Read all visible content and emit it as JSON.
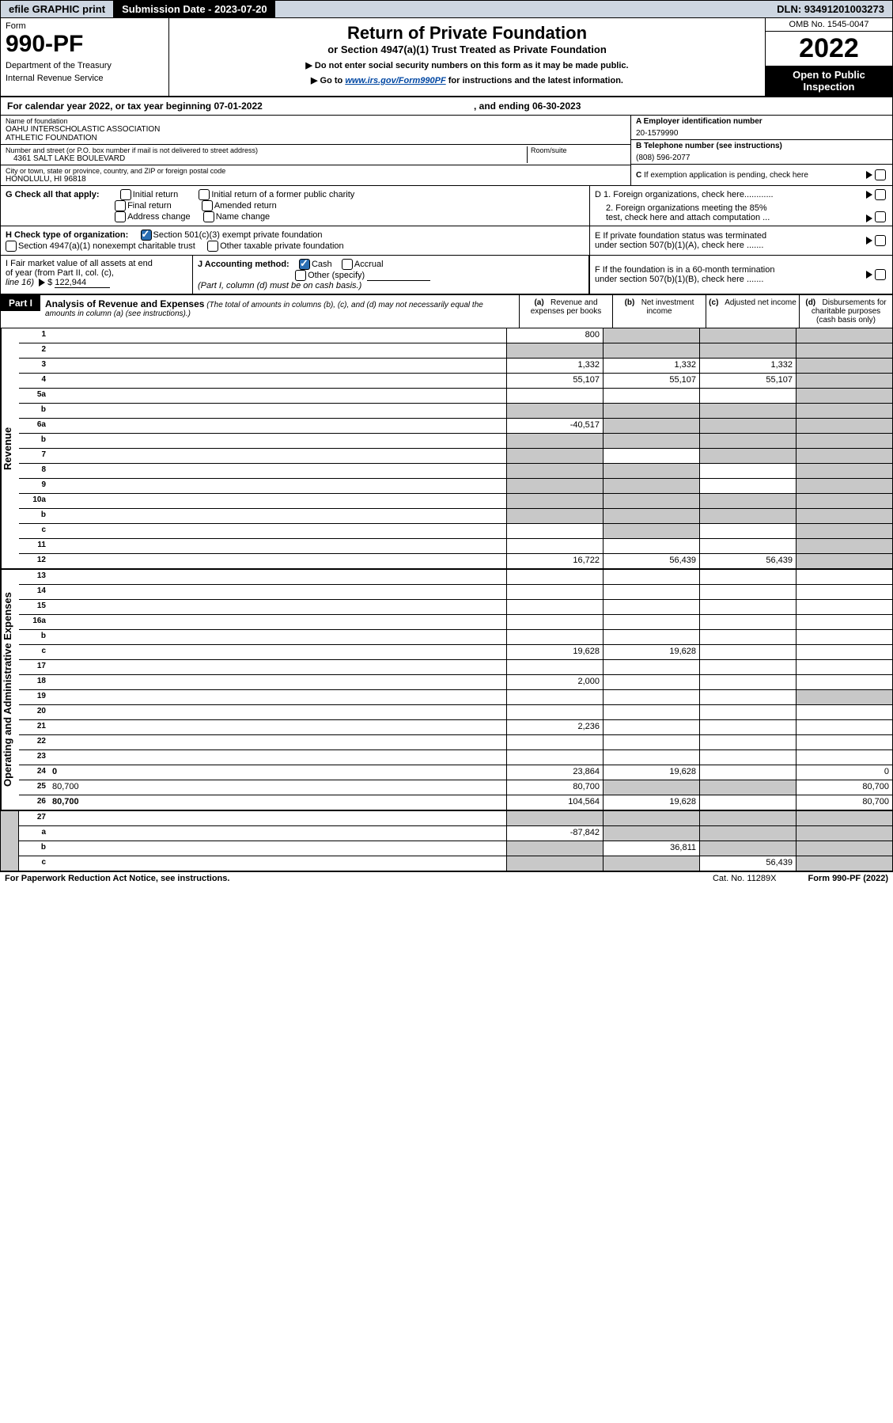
{
  "topbar": {
    "efile": "efile GRAPHIC print",
    "submission": "Submission Date - 2023-07-20",
    "dln": "DLN: 93491201003273"
  },
  "header": {
    "form_label": "Form",
    "form_num": "990-PF",
    "dept1": "Department of the Treasury",
    "dept2": "Internal Revenue Service",
    "title_main": "Return of Private Foundation",
    "title_sub": "or Section 4947(a)(1) Trust Treated as Private Foundation",
    "inst1": "▶ Do not enter social security numbers on this form as it may be made public.",
    "inst2_pre": "▶ Go to ",
    "inst2_link": "www.irs.gov/Form990PF",
    "inst2_post": " for instructions and the latest information.",
    "omb": "OMB No. 1545-0047",
    "year": "2022",
    "open1": "Open to Public",
    "open2": "Inspection"
  },
  "calendar": {
    "t1": "For calendar year 2022, or tax year beginning 07-01-2022",
    "t2": ", and ending 06-30-2023"
  },
  "ident": {
    "name_label": "Name of foundation",
    "name1": "OAHU INTERSCHOLASTIC ASSOCIATION",
    "name2": "ATHLETIC FOUNDATION",
    "addr_label": "Number and street (or P.O. box number if mail is not delivered to street address)",
    "addr": "4361 SALT LAKE BOULEVARD",
    "room_label": "Room/suite",
    "city_label": "City or town, state or province, country, and ZIP or foreign postal code",
    "city": "HONOLULU, HI  96818",
    "A_label": "A Employer identification number",
    "A_val": "20-1579990",
    "B_label": "B Telephone number (see instructions)",
    "B_val": "(808) 596-2077",
    "C_label": "C If exemption application is pending, check here"
  },
  "G": {
    "label": "G Check all that apply:",
    "o1": "Initial return",
    "o2": "Initial return of a former public charity",
    "o3": "Final return",
    "o4": "Amended return",
    "o5": "Address change",
    "o6": "Name change"
  },
  "D": {
    "d1": "D 1. Foreign organizations, check here............",
    "d2a": "2. Foreign organizations meeting the 85%",
    "d2b": "test, check here and attach computation ..."
  },
  "H": {
    "label": "H Check type of organization:",
    "o1": "Section 501(c)(3) exempt private foundation",
    "o2": "Section 4947(a)(1) nonexempt charitable trust",
    "o3": "Other taxable private foundation"
  },
  "E": {
    "l1": "E  If private foundation status was terminated",
    "l2": "under section 507(b)(1)(A), check here ......."
  },
  "I": {
    "l1": "I Fair market value of all assets at end",
    "l2": "of year (from Part II, col. (c),",
    "l3_pre": "line 16) ",
    "val": "122,944"
  },
  "J": {
    "label": "J Accounting method:",
    "o1": "Cash",
    "o2": "Accrual",
    "o3": "Other (specify)",
    "note": "(Part I, column (d) must be on cash basis.)"
  },
  "F": {
    "l1": "F  If the foundation is in a 60-month termination",
    "l2": "under section 507(b)(1)(B), check here ......."
  },
  "part1": {
    "label": "Part I",
    "title": "Analysis of Revenue and Expenses",
    "note": "(The total of amounts in columns (b), (c), and (d) may not necessarily equal the amounts in column (a) (see instructions).)",
    "col_a": "(a)   Revenue and expenses per books",
    "col_b": "(b)   Net investment income",
    "col_c": "(c)   Adjusted net income",
    "col_d": "(d)   Disbursements for charitable purposes (cash basis only)"
  },
  "vrev": "Revenue",
  "vexp": "Operating and Administrative Expenses",
  "rows_rev": [
    {
      "n": "1",
      "d": "",
      "a": "800",
      "b": "",
      "c": "",
      "gb": true,
      "gc": true,
      "gd": true
    },
    {
      "n": "2",
      "d": "",
      "a": "",
      "b": "",
      "c": "",
      "ga": true,
      "gb": true,
      "gc": true,
      "gd": true,
      "bold": false
    },
    {
      "n": "3",
      "d": "",
      "a": "1,332",
      "b": "1,332",
      "c": "1,332",
      "gd": true
    },
    {
      "n": "4",
      "d": "",
      "a": "55,107",
      "b": "55,107",
      "c": "55,107",
      "gd": true
    },
    {
      "n": "5a",
      "d": "",
      "a": "",
      "b": "",
      "c": "",
      "gd": true
    },
    {
      "n": "b",
      "d": "",
      "a": "",
      "b": "",
      "c": "",
      "ga": true,
      "gb": true,
      "gc": true,
      "gd": true
    },
    {
      "n": "6a",
      "d": "",
      "a": "-40,517",
      "b": "",
      "c": "",
      "gb": true,
      "gc": true,
      "gd": true
    },
    {
      "n": "b",
      "d": "",
      "a": "",
      "b": "",
      "c": "",
      "ga": true,
      "gb": true,
      "gc": true,
      "gd": true
    },
    {
      "n": "7",
      "d": "",
      "a": "",
      "b": "",
      "c": "",
      "ga": true,
      "gc": true,
      "gd": true
    },
    {
      "n": "8",
      "d": "",
      "a": "",
      "b": "",
      "c": "",
      "ga": true,
      "gb": true,
      "gd": true
    },
    {
      "n": "9",
      "d": "",
      "a": "",
      "b": "",
      "c": "",
      "ga": true,
      "gb": true,
      "gd": true
    },
    {
      "n": "10a",
      "d": "",
      "a": "",
      "b": "",
      "c": "",
      "ga": true,
      "gb": true,
      "gc": true,
      "gd": true
    },
    {
      "n": "b",
      "d": "",
      "a": "",
      "b": "",
      "c": "",
      "ga": true,
      "gb": true,
      "gc": true,
      "gd": true
    },
    {
      "n": "c",
      "d": "",
      "a": "",
      "b": "",
      "c": "",
      "gb": true,
      "gd": true
    },
    {
      "n": "11",
      "d": "",
      "a": "",
      "b": "",
      "c": "",
      "gd": true
    },
    {
      "n": "12",
      "d": "",
      "a": "16,722",
      "b": "56,439",
      "c": "56,439",
      "gd": true,
      "bold": true
    }
  ],
  "rows_exp": [
    {
      "n": "13",
      "d": "",
      "a": "",
      "b": "",
      "c": ""
    },
    {
      "n": "14",
      "d": "",
      "a": "",
      "b": "",
      "c": ""
    },
    {
      "n": "15",
      "d": "",
      "a": "",
      "b": "",
      "c": ""
    },
    {
      "n": "16a",
      "d": "",
      "a": "",
      "b": "",
      "c": ""
    },
    {
      "n": "b",
      "d": "",
      "a": "",
      "b": "",
      "c": ""
    },
    {
      "n": "c",
      "d": "",
      "a": "19,628",
      "b": "19,628",
      "c": ""
    },
    {
      "n": "17",
      "d": "",
      "a": "",
      "b": "",
      "c": ""
    },
    {
      "n": "18",
      "d": "",
      "a": "2,000",
      "b": "",
      "c": ""
    },
    {
      "n": "19",
      "d": "",
      "a": "",
      "b": "",
      "c": "",
      "gd": true
    },
    {
      "n": "20",
      "d": "",
      "a": "",
      "b": "",
      "c": ""
    },
    {
      "n": "21",
      "d": "",
      "a": "2,236",
      "b": "",
      "c": ""
    },
    {
      "n": "22",
      "d": "",
      "a": "",
      "b": "",
      "c": ""
    },
    {
      "n": "23",
      "d": "",
      "a": "",
      "b": "",
      "c": ""
    },
    {
      "n": "24",
      "d": "0",
      "a": "23,864",
      "b": "19,628",
      "c": "",
      "bold": true
    },
    {
      "n": "25",
      "d": "80,700",
      "a": "80,700",
      "b": "",
      "c": "",
      "gb": true,
      "gc": true
    },
    {
      "n": "26",
      "d": "80,700",
      "a": "104,564",
      "b": "19,628",
      "c": "",
      "bold": true
    }
  ],
  "rows_final": [
    {
      "n": "27",
      "d": "",
      "a": "",
      "b": "",
      "c": "",
      "ga": true,
      "gb": true,
      "gc": true,
      "gd": true,
      "bold": true
    },
    {
      "n": "a",
      "d": "",
      "a": "-87,842",
      "b": "",
      "c": "",
      "gb": true,
      "gc": true,
      "gd": true,
      "bold": true
    },
    {
      "n": "b",
      "d": "",
      "a": "",
      "b": "36,811",
      "c": "",
      "ga": true,
      "gc": true,
      "gd": true,
      "bold": true
    },
    {
      "n": "c",
      "d": "",
      "a": "",
      "b": "",
      "c": "56,439",
      "ga": true,
      "gb": true,
      "gd": true,
      "bold": true
    }
  ],
  "footer": {
    "left": "For Paperwork Reduction Act Notice, see instructions.",
    "mid": "Cat. No. 11289X",
    "right": "Form 990-PF (2022)"
  }
}
